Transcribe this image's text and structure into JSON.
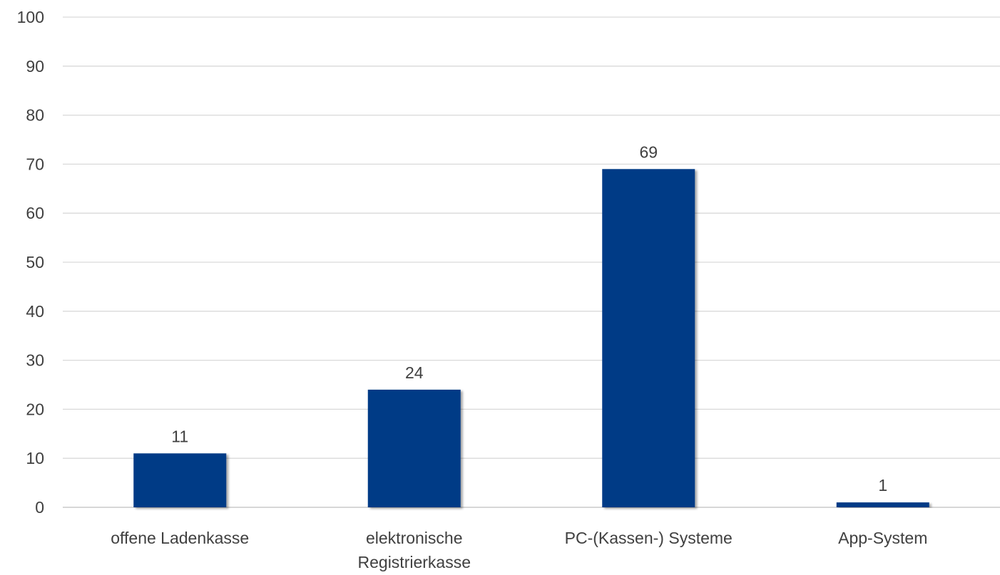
{
  "chart_data": {
    "type": "bar",
    "categories": [
      [
        "offene Ladenkasse"
      ],
      [
        "elektronische",
        "Registrierkasse"
      ],
      [
        "PC-(Kassen-) Systeme"
      ],
      [
        "App-System"
      ]
    ],
    "values": [
      11,
      24,
      69,
      1
    ],
    "ylim": [
      0,
      100
    ],
    "yticks": [
      0,
      10,
      20,
      30,
      40,
      50,
      60,
      70,
      80,
      90,
      100
    ],
    "grid": true,
    "data_labels": true,
    "legend": "none",
    "colors": {
      "bar": "#003A86",
      "bar_shadow": "#b8b8b8"
    }
  }
}
